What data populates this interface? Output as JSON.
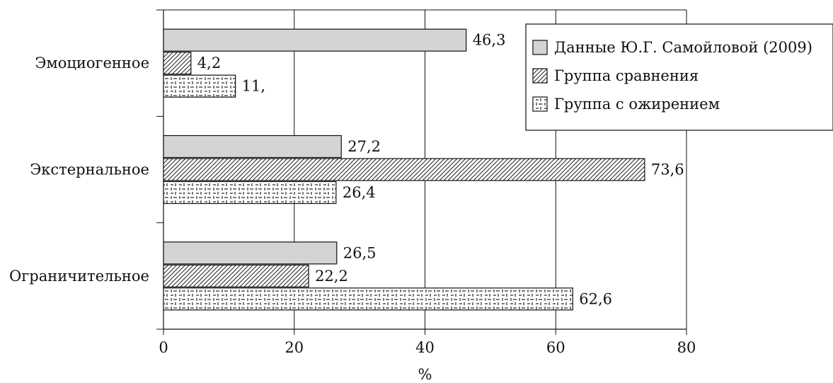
{
  "chart_data": {
    "type": "bar",
    "orientation": "horizontal",
    "categories": [
      "Эмоциогенное",
      "Экстернальное",
      "Ограничительное"
    ],
    "series": [
      {
        "name": "Данные Ю.Г. Самойловой (2009)",
        "values": [
          46.3,
          27.2,
          26.5
        ],
        "value_labels": [
          "46,3",
          "27,2",
          "26,5"
        ],
        "fill": "gray"
      },
      {
        "name": "Группа сравнения",
        "values": [
          4.2,
          73.6,
          22.2
        ],
        "value_labels": [
          "4,2",
          "73,6",
          "22,2"
        ],
        "fill": "hatch"
      },
      {
        "name": "Группа с ожирением",
        "values": [
          11,
          26.4,
          62.6
        ],
        "value_labels": [
          "11,",
          "26,4",
          "62,6"
        ],
        "fill": "dots"
      }
    ],
    "xlabel": "%",
    "ylabel": "",
    "title": "",
    "xlim": [
      0,
      80
    ],
    "x_ticks": [
      0,
      20,
      40,
      60,
      80
    ],
    "grid": "vertical",
    "legend_position": "top-right",
    "colors": {
      "gray": "#d4d4d4",
      "stroke": "#111111",
      "background": "#ffffff"
    }
  }
}
